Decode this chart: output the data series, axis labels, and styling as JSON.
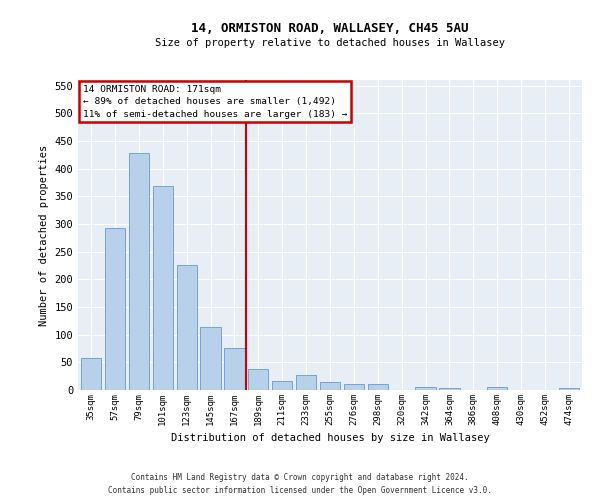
{
  "title1": "14, ORMISTON ROAD, WALLASEY, CH45 5AU",
  "title2": "Size of property relative to detached houses in Wallasey",
  "xlabel": "Distribution of detached houses by size in Wallasey",
  "ylabel": "Number of detached properties",
  "bar_labels": [
    "35sqm",
    "57sqm",
    "79sqm",
    "101sqm",
    "123sqm",
    "145sqm",
    "167sqm",
    "189sqm",
    "211sqm",
    "233sqm",
    "255sqm",
    "276sqm",
    "298sqm",
    "320sqm",
    "342sqm",
    "364sqm",
    "386sqm",
    "408sqm",
    "430sqm",
    "452sqm",
    "474sqm"
  ],
  "bar_values": [
    57,
    293,
    428,
    368,
    225,
    113,
    75,
    38,
    17,
    27,
    15,
    10,
    10,
    0,
    5,
    4,
    0,
    6,
    0,
    0,
    4
  ],
  "bar_color": "#b8d0ea",
  "bar_edge_color": "#6699cc",
  "vline_index": 6,
  "vline_color": "#cc0000",
  "annotation_line1": "14 ORMISTON ROAD: 171sqm",
  "annotation_line2": "← 89% of detached houses are smaller (1,492)",
  "annotation_line3": "11% of semi-detached houses are larger (183) →",
  "annotation_box_edge": "#cc0000",
  "footer1": "Contains HM Land Registry data © Crown copyright and database right 2024.",
  "footer2": "Contains public sector information licensed under the Open Government Licence v3.0.",
  "ylim": [
    0,
    560
  ],
  "yticks": [
    0,
    50,
    100,
    150,
    200,
    250,
    300,
    350,
    400,
    450,
    500,
    550
  ],
  "fig_bg": "#ffffff",
  "plot_bg": "#e8eef5"
}
